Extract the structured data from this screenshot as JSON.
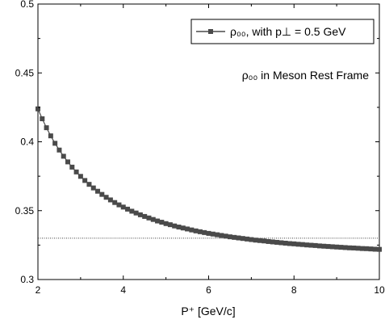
{
  "chart_data": {
    "type": "line",
    "title": "",
    "xlabel": "P⁺ [GeV/c]",
    "ylabel": "",
    "xlim": [
      2,
      10
    ],
    "ylim": [
      0.3,
      0.5
    ],
    "xticks": [
      2,
      4,
      6,
      8,
      10
    ],
    "xtick_labels": [
      "2",
      "4",
      "6",
      "8",
      "10"
    ],
    "yticks": [
      0.3,
      0.35,
      0.4,
      0.45,
      0.5
    ],
    "ytick_labels": [
      "0.3",
      "0.35",
      "0.4",
      "0.45",
      "0.5"
    ],
    "grid": false,
    "legend_position": "top-right",
    "series": [
      {
        "name": "ρ₀₀, with p⊥ = 0.5 GeV",
        "color": "#4a4a4a",
        "marker": "square",
        "x": [
          2.0,
          2.1,
          2.2,
          2.3,
          2.4,
          2.5,
          2.6,
          2.7,
          2.8,
          2.9,
          3.0,
          3.1,
          3.2,
          3.3,
          3.4,
          3.5,
          3.6,
          3.7,
          3.8,
          3.9,
          4.0,
          4.1,
          4.2,
          4.3,
          4.4,
          4.5,
          4.6,
          4.7,
          4.8,
          4.9,
          5.0,
          5.1,
          5.2,
          5.3,
          5.4,
          5.5,
          5.6,
          5.7,
          5.8,
          5.9,
          6.0,
          6.1,
          6.2,
          6.3,
          6.4,
          6.5,
          6.6,
          6.7,
          6.8,
          6.9,
          7.0,
          7.1,
          7.2,
          7.3,
          7.4,
          7.5,
          7.6,
          7.7,
          7.8,
          7.9,
          8.0,
          8.1,
          8.2,
          8.3,
          8.4,
          8.5,
          8.6,
          8.7,
          8.8,
          8.9,
          9.0,
          9.1,
          9.2,
          9.3,
          9.4,
          9.5,
          9.6,
          9.7,
          9.8,
          9.9,
          10.0
        ],
        "y": [
          0.4239,
          0.4167,
          0.4102,
          0.4043,
          0.3989,
          0.394,
          0.3895,
          0.3854,
          0.3816,
          0.3781,
          0.3749,
          0.3719,
          0.3691,
          0.3665,
          0.3641,
          0.3618,
          0.3597,
          0.3578,
          0.3559,
          0.3542,
          0.3526,
          0.3511,
          0.3496,
          0.3483,
          0.347,
          0.3458,
          0.3447,
          0.3436,
          0.3425,
          0.3416,
          0.3406,
          0.3398,
          0.3389,
          0.3381,
          0.3374,
          0.3367,
          0.336,
          0.3353,
          0.3347,
          0.3341,
          0.3335,
          0.333,
          0.3325,
          0.332,
          0.3315,
          0.331,
          0.3306,
          0.3302,
          0.3298,
          0.3294,
          0.329,
          0.3286,
          0.3283,
          0.328,
          0.3276,
          0.3273,
          0.327,
          0.3267,
          0.3264,
          0.3261,
          0.3259,
          0.3256,
          0.3254,
          0.3251,
          0.3249,
          0.3247,
          0.3244,
          0.3242,
          0.324,
          0.3238,
          0.3236,
          0.3234,
          0.3232,
          0.323,
          0.3229,
          0.3227,
          0.3225,
          0.3224,
          0.3222,
          0.322,
          0.3219
        ]
      }
    ],
    "reference_line": {
      "y": 0.33,
      "style": "dotted",
      "color": "#000000"
    },
    "annotations": [
      {
        "text": "ρ₀₀ in Meson Rest Frame",
        "position": "upper-right"
      }
    ]
  }
}
